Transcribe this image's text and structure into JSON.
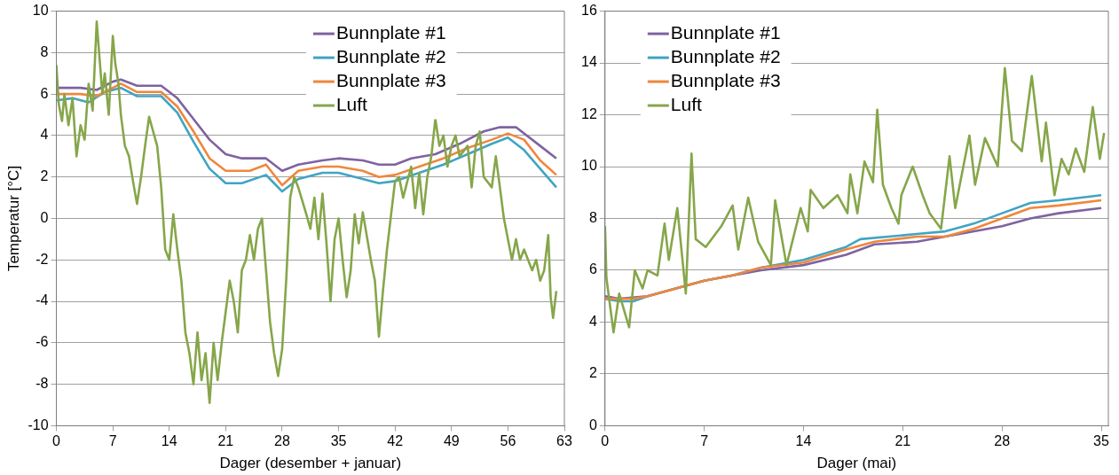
{
  "chart_data": [
    {
      "type": "line",
      "xlabel": "Dager (desember + januar)",
      "ylabel": "Temperatur [°C]",
      "xlim": [
        0,
        63
      ],
      "xticks": [
        0,
        7,
        14,
        21,
        28,
        35,
        42,
        49,
        56,
        63
      ],
      "ylim": [
        -10,
        10
      ],
      "yticks": [
        -10,
        -8,
        -6,
        -4,
        -2,
        0,
        2,
        4,
        6,
        8,
        10
      ],
      "grid": "y",
      "legend": "top",
      "series": [
        {
          "name": "Bunnplate #1",
          "color": "#7f63a1",
          "x": [
            0,
            3,
            5,
            7,
            8,
            10,
            13,
            15,
            17,
            19,
            21,
            23,
            26,
            28,
            30,
            33,
            35,
            38,
            40,
            42,
            44,
            47,
            50,
            53,
            55,
            57,
            60,
            62
          ],
          "values": [
            6.3,
            6.3,
            6.2,
            6.6,
            6.7,
            6.4,
            6.4,
            5.8,
            4.8,
            3.8,
            3.1,
            2.9,
            2.9,
            2.3,
            2.6,
            2.8,
            2.9,
            2.8,
            2.6,
            2.6,
            2.9,
            3.1,
            3.6,
            4.2,
            4.4,
            4.4,
            3.5,
            2.9
          ]
        },
        {
          "name": "Bunnplate #2",
          "color": "#41a4c3",
          "x": [
            0,
            2,
            4,
            6,
            8,
            10,
            13,
            15,
            17,
            19,
            21,
            23,
            26,
            27,
            28,
            30,
            33,
            35,
            38,
            40,
            42,
            45,
            48,
            51,
            54,
            56,
            58,
            60,
            62
          ],
          "values": [
            5.7,
            5.8,
            5.6,
            6.1,
            6.3,
            5.9,
            5.9,
            5.1,
            3.7,
            2.4,
            1.7,
            1.7,
            2.1,
            1.7,
            1.3,
            1.9,
            2.2,
            2.2,
            1.9,
            1.7,
            1.8,
            2.2,
            2.6,
            3.1,
            3.6,
            3.9,
            3.3,
            2.4,
            1.5
          ]
        },
        {
          "name": "Bunnplate #3",
          "color": "#f0873c",
          "x": [
            0,
            3,
            5,
            7,
            8,
            10,
            13,
            15,
            17,
            19,
            21,
            24,
            26,
            28,
            30,
            33,
            35,
            38,
            40,
            42,
            45,
            48,
            51,
            54,
            56,
            58,
            60,
            62
          ],
          "values": [
            6.0,
            6.0,
            5.9,
            6.3,
            6.5,
            6.1,
            6.1,
            5.4,
            4.2,
            2.9,
            2.3,
            2.3,
            2.6,
            1.6,
            2.3,
            2.5,
            2.5,
            2.3,
            2.0,
            2.1,
            2.5,
            2.9,
            3.4,
            3.8,
            4.1,
            3.8,
            2.8,
            2.1
          ]
        },
        {
          "name": "Luft",
          "color": "#86a64a",
          "x": [
            0,
            0.3,
            0.7,
            1,
            1.5,
            2,
            2.5,
            3,
            3.5,
            4,
            4.5,
            5,
            5.3,
            5.7,
            6,
            6.5,
            7,
            7.3,
            7.7,
            8,
            8.5,
            9,
            9.5,
            10,
            10.5,
            11,
            11.5,
            12,
            12.5,
            13,
            13.5,
            14,
            14.5,
            15,
            15.5,
            16,
            16.5,
            17,
            17.5,
            18,
            18.5,
            19,
            19.5,
            20,
            20.5,
            21,
            21.5,
            22,
            22.5,
            23,
            23.5,
            24,
            24.5,
            25,
            25.5,
            26,
            26.5,
            27,
            27.5,
            28,
            28.5,
            29,
            29.5,
            30,
            31,
            31.5,
            32,
            32.5,
            33,
            33.5,
            34,
            34.5,
            35,
            35.5,
            36,
            36.5,
            37,
            37.5,
            38,
            39,
            39.5,
            40,
            40.5,
            41,
            42,
            42.5,
            43,
            44,
            44.5,
            45,
            45.5,
            46,
            46.5,
            47,
            47.5,
            48,
            48.5,
            49,
            49.5,
            50,
            51,
            51.5,
            52,
            52.5,
            53,
            54,
            54.5,
            55,
            55.5,
            56,
            56.5,
            57,
            57.5,
            58,
            59,
            59.5,
            60,
            60.5,
            61,
            61.3,
            61.6,
            62
          ],
          "values": [
            7.4,
            5.5,
            4.7,
            6.0,
            4.5,
            5.8,
            3.0,
            4.5,
            3.8,
            6.5,
            5.2,
            9.5,
            8.0,
            6.0,
            7.0,
            5.0,
            8.8,
            7.5,
            6.5,
            5.0,
            3.5,
            3.0,
            1.8,
            0.7,
            2.0,
            3.5,
            4.9,
            4.2,
            3.5,
            1.5,
            -1.5,
            -2.0,
            0.2,
            -1.5,
            -3.0,
            -5.5,
            -6.5,
            -8.0,
            -5.5,
            -7.8,
            -6.5,
            -8.9,
            -6.0,
            -7.8,
            -6.0,
            -4.5,
            -3.0,
            -4.0,
            -5.5,
            -2.5,
            -2.0,
            -0.8,
            -2.0,
            -0.5,
            0.0,
            -2.5,
            -5.0,
            -6.5,
            -7.6,
            -6.3,
            -3.0,
            1.0,
            2.0,
            1.5,
            0.2,
            -0.5,
            1.0,
            -1.0,
            1.2,
            -1.2,
            -4.0,
            -1.0,
            0.0,
            -2.0,
            -3.8,
            -2.5,
            0.2,
            -1.2,
            0.3,
            -2.0,
            -3.0,
            -5.7,
            -3.5,
            -1.5,
            1.8,
            2.0,
            1.0,
            2.5,
            0.5,
            2.2,
            0.2,
            2.0,
            3.0,
            4.8,
            3.5,
            4.0,
            2.5,
            3.5,
            4.0,
            3.0,
            3.5,
            1.5,
            3.5,
            4.2,
            2.0,
            1.5,
            3.0,
            1.5,
            0.0,
            -1.0,
            -2.0,
            -1.0,
            -2.0,
            -1.5,
            -2.5,
            -2.0,
            -3.0,
            -2.5,
            -0.8,
            -3.8,
            -4.8,
            -3.5
          ]
        }
      ]
    },
    {
      "type": "line",
      "xlabel": "Dager (mai)",
      "xlim": [
        0,
        35.5
      ],
      "xticks": [
        0,
        7,
        14,
        21,
        28,
        35
      ],
      "ylim": [
        0,
        16
      ],
      "yticks": [
        0,
        2,
        4,
        6,
        8,
        10,
        12,
        14,
        16
      ],
      "grid": "y",
      "legend": "top left",
      "series": [
        {
          "name": "Bunnplate #1",
          "color": "#7f63a1",
          "x": [
            0,
            1,
            3,
            5,
            7,
            9,
            11,
            14,
            17,
            19,
            22,
            25,
            28,
            30,
            32,
            35
          ],
          "values": [
            5.0,
            4.9,
            5.0,
            5.3,
            5.6,
            5.8,
            6.0,
            6.2,
            6.6,
            7.0,
            7.1,
            7.4,
            7.7,
            8.0,
            8.2,
            8.4
          ]
        },
        {
          "name": "Bunnplate #2",
          "color": "#41a4c3",
          "x": [
            0,
            1,
            2,
            3,
            5,
            7,
            9,
            11,
            14,
            17,
            18,
            20,
            22,
            24,
            26,
            28,
            30,
            32,
            35
          ],
          "values": [
            4.9,
            4.8,
            4.8,
            5.0,
            5.3,
            5.6,
            5.8,
            6.1,
            6.4,
            6.9,
            7.2,
            7.3,
            7.4,
            7.5,
            7.8,
            8.2,
            8.6,
            8.7,
            8.9
          ]
        },
        {
          "name": "Bunnplate #3",
          "color": "#f0873c",
          "x": [
            0,
            2,
            3,
            5,
            7,
            9,
            11,
            14,
            17,
            19,
            22,
            24,
            26,
            28,
            30,
            32,
            35
          ],
          "values": [
            4.9,
            4.9,
            5.0,
            5.3,
            5.6,
            5.8,
            6.1,
            6.3,
            6.8,
            7.1,
            7.3,
            7.3,
            7.6,
            8.0,
            8.4,
            8.5,
            8.7
          ]
        },
        {
          "name": "Luft",
          "color": "#86a64a",
          "x": [
            0,
            0.1,
            0.6,
            1,
            1.7,
            2.1,
            2.65,
            3.0,
            3.7,
            4.2,
            4.5,
            5.1,
            5.7,
            6.1,
            6.4,
            7.1,
            8.2,
            9,
            9.4,
            10.1,
            10.8,
            11.7,
            12,
            12.8,
            13.8,
            14.3,
            14.5,
            15.4,
            16.4,
            17.1,
            17.3,
            17.8,
            18.3,
            18.9,
            19.2,
            19.6,
            20.2,
            20.7,
            20.9,
            21.7,
            22.4,
            22.9,
            23.7,
            24.3,
            24.7,
            25.7,
            26.1,
            26.8,
            27.7,
            28.2,
            28.7,
            29.4,
            30.1,
            30.8,
            31.1,
            31.7,
            32.2,
            32.7,
            33.2,
            33.8,
            34.4,
            34.9,
            35.2
          ],
          "values": [
            7.7,
            5.7,
            3.6,
            5.1,
            3.8,
            6.0,
            5.3,
            6.0,
            5.8,
            7.8,
            6.4,
            8.4,
            5.1,
            10.5,
            7.2,
            6.9,
            7.7,
            8.5,
            6.8,
            8.8,
            7.1,
            6.2,
            8.7,
            6.2,
            8.4,
            7.5,
            9.1,
            8.4,
            8.9,
            8.2,
            9.7,
            8.2,
            10.2,
            9.4,
            12.2,
            9.3,
            8.4,
            7.8,
            8.9,
            10.0,
            8.9,
            8.2,
            7.6,
            10.4,
            8.4,
            11.2,
            9.3,
            11.1,
            10.0,
            13.8,
            11.0,
            10.6,
            13.5,
            10.2,
            11.7,
            8.9,
            10.3,
            9.7,
            10.7,
            9.8,
            12.3,
            10.3,
            11.3
          ]
        }
      ]
    }
  ]
}
